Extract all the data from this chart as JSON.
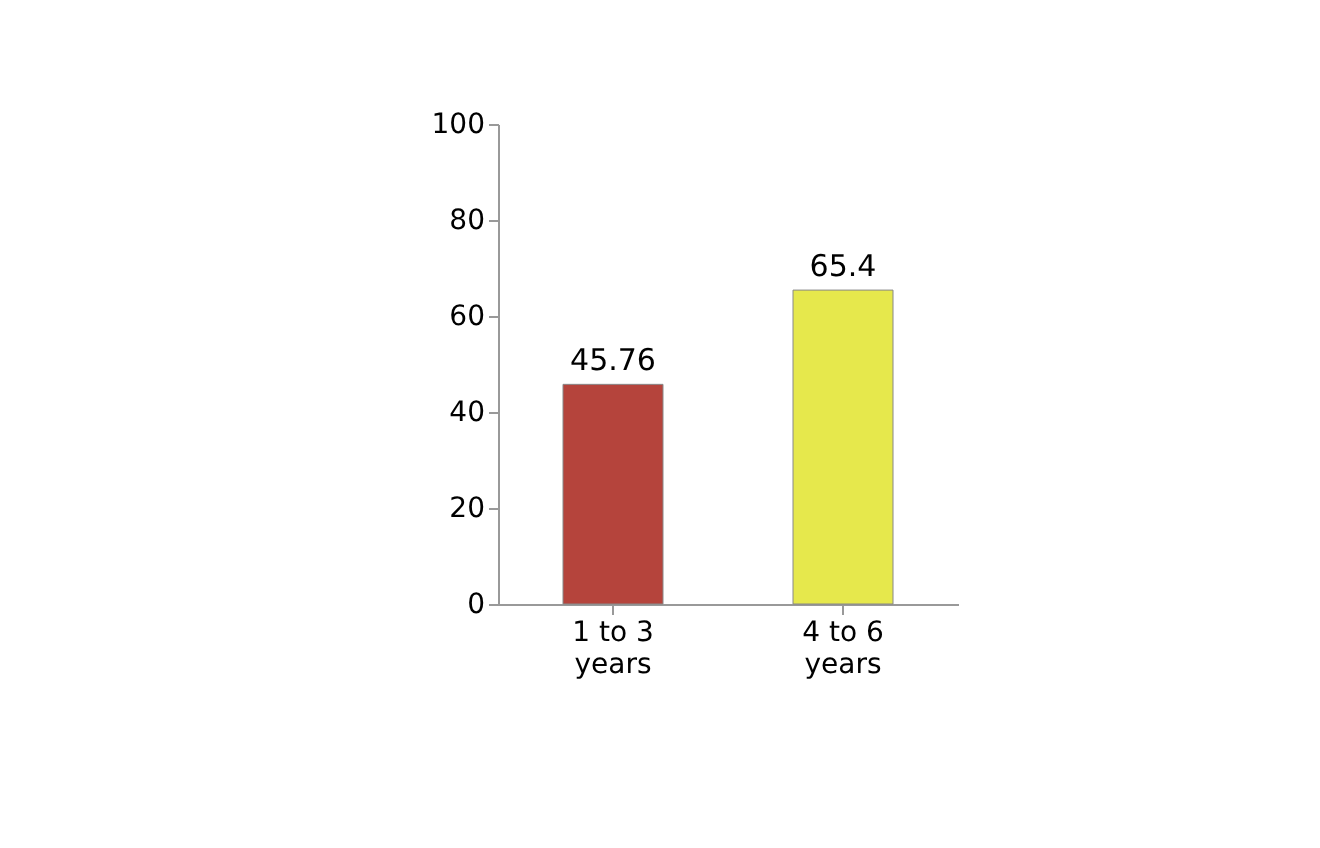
{
  "chart_data": {
    "type": "bar",
    "categories": [
      "1 to 3 years",
      "4 to 6 years"
    ],
    "values": [
      45.76,
      65.4
    ],
    "colors": [
      "#b5443c",
      "#e6e84c"
    ],
    "ylim": [
      0,
      100
    ],
    "yticks": [
      0,
      20,
      40,
      60,
      80,
      100
    ],
    "data_labels": true,
    "grid": false
  }
}
